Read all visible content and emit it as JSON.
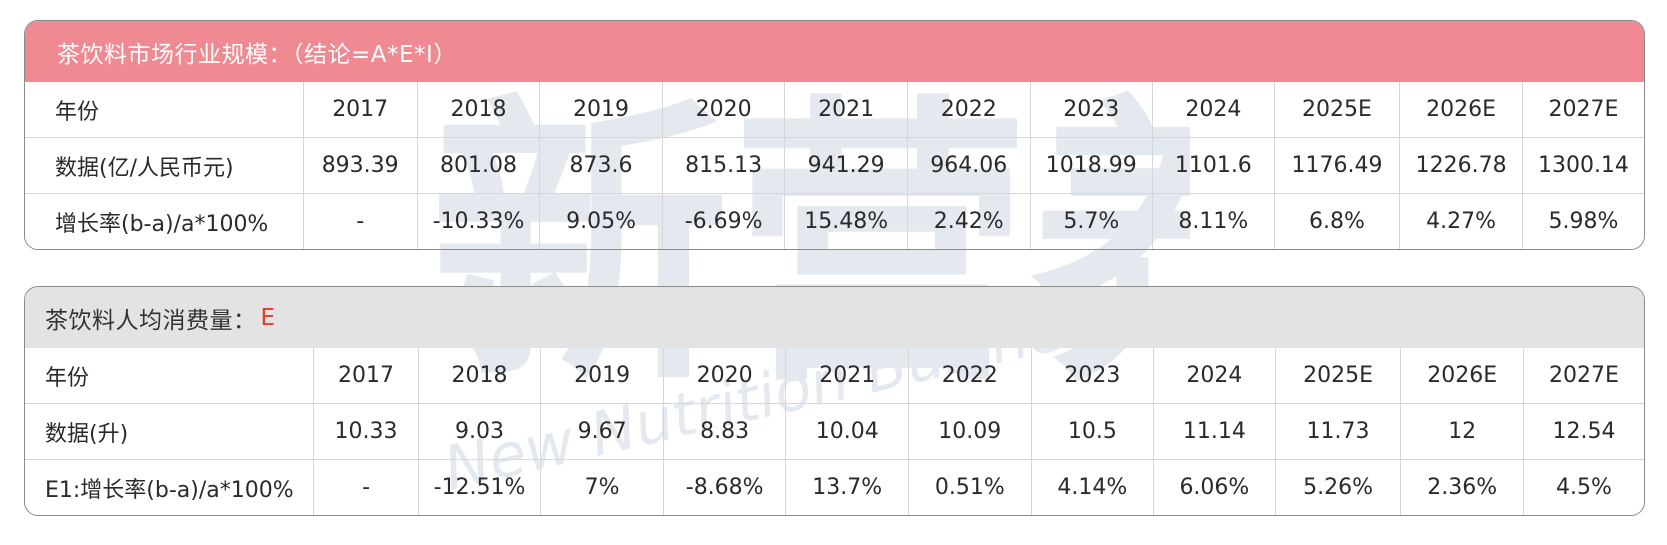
{
  "table1": {
    "title": "茶饮料市场行业规模：（结论=A*E*I）",
    "rows": [
      {
        "label": "年份",
        "values": [
          "2017",
          "2018",
          "2019",
          "2020",
          "2021",
          "2022",
          "2023",
          "2024",
          "2025E",
          "2026E",
          "2027E"
        ]
      },
      {
        "label": "数据(亿/人民币元)",
        "values": [
          "893.39",
          "801.08",
          "873.6",
          "815.13",
          "941.29",
          "964.06",
          "1018.99",
          "1101.6",
          "1176.49",
          "1226.78",
          "1300.14"
        ]
      },
      {
        "label": "增长率(b-a)/a*100%",
        "values": [
          "-",
          "-10.33%",
          "9.05%",
          "-6.69%",
          "15.48%",
          "2.42%",
          "5.7%",
          "8.11%",
          "6.8%",
          "4.27%",
          "5.98%"
        ]
      }
    ]
  },
  "table2": {
    "title": "茶饮料人均消费量：",
    "title_highlight": "E",
    "rows": [
      {
        "label": "年份",
        "values": [
          "2017",
          "2018",
          "2019",
          "2020",
          "2021",
          "2022",
          "2023",
          "2024",
          "2025E",
          "2026E",
          "2027E"
        ]
      },
      {
        "label": "数据(升)",
        "values": [
          "10.33",
          "9.03",
          "9.67",
          "8.83",
          "10.04",
          "10.09",
          "10.5",
          "11.14",
          "11.73",
          "12",
          "12.54"
        ]
      },
      {
        "label": "E1:增长率(b-a)/a*100%",
        "values": [
          "-",
          "-12.51%",
          "7%",
          "-8.68%",
          "13.7%",
          "0.51%",
          "4.14%",
          "6.06%",
          "5.26%",
          "2.36%",
          "4.5%"
        ]
      }
    ]
  },
  "colors": {
    "header1_bg": "#ef8a93",
    "header2_bg": "#e3e3e3",
    "highlight": "#e33b2f"
  },
  "watermark": {
    "logo": "新营养",
    "text": "New Nutrition Business",
    "registered_mark": "®"
  }
}
